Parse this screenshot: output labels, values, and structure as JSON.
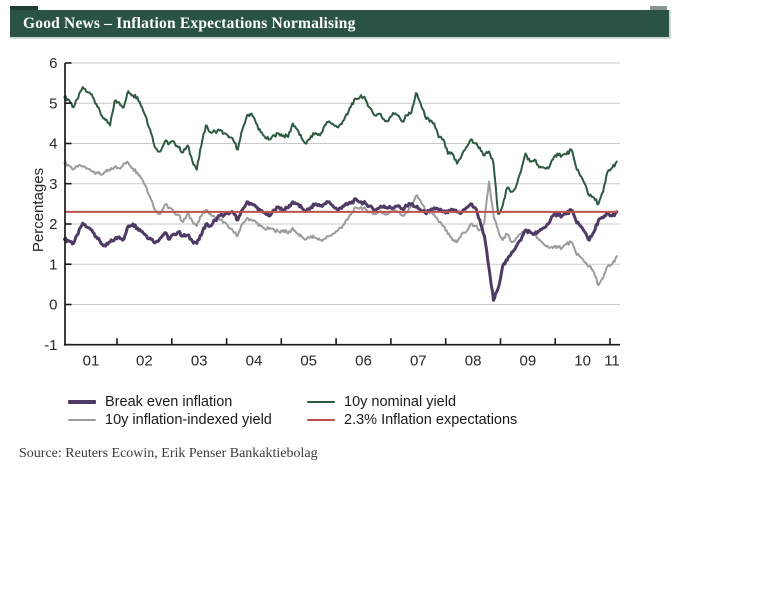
{
  "header": {
    "title": "Good News – Inflation Expectations Normalising",
    "bar_color": "#2a5343",
    "notch_left_color": "#1e3f33",
    "notch_right_color": "#8a968e"
  },
  "chart_data": {
    "type": "line",
    "title": "",
    "xlabel": "",
    "ylabel": "Percentages",
    "ylim": [
      -1,
      6
    ],
    "grid": "horizontal-on",
    "grid_color": "#c9c9c9",
    "axis_color": "#1a1a1a",
    "tick_label_color": "#26282e",
    "legend_position": "below",
    "y_ticks": [
      6,
      5,
      4,
      3,
      2,
      1,
      0,
      -1
    ],
    "x_tick_labels": [
      "01",
      "02",
      "03",
      "04",
      "05",
      "06",
      "07",
      "08",
      "09",
      "10",
      "11"
    ],
    "x_years_range": [
      2001.0,
      2011.2
    ],
    "reference_line": {
      "label": "2.3% Inflation expectations",
      "value": 2.3,
      "color": "#c0504d",
      "width": 2
    },
    "series": [
      {
        "name": "10y inflation-indexed yield",
        "color": "#9c9c9c",
        "width": 2,
        "noise": 0.045,
        "x_start": 2001.04,
        "x_step": 0.083333,
        "values": [
          3.52,
          3.45,
          3.36,
          3.42,
          3.44,
          3.38,
          3.32,
          3.28,
          3.22,
          3.3,
          3.33,
          3.42,
          3.38,
          3.5,
          3.52,
          3.38,
          3.28,
          3.12,
          2.9,
          2.6,
          2.33,
          2.25,
          2.48,
          2.4,
          2.3,
          2.22,
          2.05,
          2.25,
          2.08,
          1.95,
          2.2,
          2.35,
          2.25,
          2.15,
          2.1,
          2.05,
          1.9,
          1.8,
          1.72,
          2.0,
          2.15,
          2.1,
          2.04,
          1.95,
          1.86,
          1.9,
          1.84,
          1.8,
          1.85,
          1.76,
          1.9,
          1.76,
          1.68,
          1.62,
          1.7,
          1.66,
          1.6,
          1.63,
          1.7,
          1.76,
          1.86,
          1.96,
          2.1,
          2.3,
          2.4,
          2.42,
          2.36,
          2.3,
          2.25,
          2.3,
          2.27,
          2.25,
          2.35,
          2.3,
          2.22,
          2.28,
          2.45,
          2.7,
          2.58,
          2.35,
          2.28,
          2.24,
          2.05,
          1.95,
          1.75,
          1.6,
          1.55,
          1.75,
          1.8,
          2.0,
          1.95,
          1.85,
          2.05,
          3.05,
          2.2,
          1.85,
          1.6,
          1.75,
          1.55,
          1.65,
          1.75,
          1.85,
          1.8,
          1.74,
          1.6,
          1.5,
          1.42,
          1.4,
          1.45,
          1.4,
          1.5,
          1.55,
          1.3,
          1.18,
          1.05,
          0.95,
          0.8,
          0.48,
          0.65,
          0.95,
          1.0,
          1.2
        ]
      },
      {
        "name": "10y nominal yield",
        "color": "#2e5a41",
        "width": 2,
        "noise": 0.05,
        "x_start": 2001.04,
        "x_step": 0.083333,
        "values": [
          5.15,
          5.08,
          4.9,
          5.12,
          5.4,
          5.28,
          5.22,
          4.98,
          4.72,
          4.58,
          4.45,
          5.05,
          5.02,
          4.9,
          5.3,
          5.2,
          5.15,
          4.9,
          4.62,
          4.25,
          3.88,
          3.8,
          4.05,
          4.0,
          4.05,
          3.9,
          3.78,
          3.95,
          3.58,
          3.35,
          3.95,
          4.45,
          4.28,
          4.3,
          4.32,
          4.25,
          4.15,
          4.08,
          3.85,
          4.35,
          4.7,
          4.74,
          4.5,
          4.28,
          4.14,
          4.1,
          4.2,
          4.24,
          4.2,
          4.16,
          4.5,
          4.35,
          4.12,
          4.0,
          4.18,
          4.26,
          4.2,
          4.45,
          4.55,
          4.46,
          4.4,
          4.56,
          4.72,
          5.0,
          5.1,
          5.2,
          5.08,
          4.88,
          4.7,
          4.74,
          4.6,
          4.56,
          4.76,
          4.7,
          4.55,
          4.7,
          4.76,
          5.25,
          5.0,
          4.68,
          4.54,
          4.5,
          4.15,
          4.1,
          3.74,
          3.74,
          3.5,
          3.7,
          3.9,
          4.1,
          4.0,
          3.9,
          3.7,
          3.8,
          3.5,
          2.25,
          2.45,
          2.9,
          2.8,
          2.95,
          3.3,
          3.75,
          3.55,
          3.6,
          3.4,
          3.4,
          3.38,
          3.6,
          3.75,
          3.7,
          3.73,
          3.85,
          3.45,
          3.2,
          3.0,
          2.7,
          2.65,
          2.5,
          2.8,
          3.3,
          3.4,
          3.55
        ]
      },
      {
        "name": "Break even inflation",
        "color": "#4e3a64",
        "width": 3,
        "noise": 0.045,
        "x_start": 2001.04,
        "x_step": 0.083333,
        "values": [
          1.62,
          1.58,
          1.52,
          1.75,
          2.02,
          1.92,
          1.85,
          1.68,
          1.52,
          1.45,
          1.55,
          1.62,
          1.68,
          1.62,
          1.95,
          2.0,
          1.9,
          1.82,
          1.7,
          1.62,
          1.55,
          1.65,
          1.78,
          1.62,
          1.75,
          1.8,
          1.7,
          1.72,
          1.58,
          1.52,
          1.72,
          2.0,
          1.95,
          2.1,
          2.2,
          2.22,
          2.25,
          2.28,
          2.1,
          2.35,
          2.55,
          2.5,
          2.42,
          2.32,
          2.26,
          2.2,
          2.35,
          2.42,
          2.35,
          2.4,
          2.55,
          2.5,
          2.4,
          2.32,
          2.42,
          2.5,
          2.45,
          2.5,
          2.55,
          2.42,
          2.35,
          2.45,
          2.48,
          2.55,
          2.6,
          2.55,
          2.5,
          2.45,
          2.35,
          2.4,
          2.45,
          2.4,
          2.4,
          2.45,
          2.38,
          2.45,
          2.5,
          2.42,
          2.35,
          2.28,
          2.3,
          2.4,
          2.35,
          2.3,
          2.28,
          2.35,
          2.3,
          2.28,
          2.4,
          2.5,
          2.4,
          2.1,
          1.7,
          0.9,
          0.1,
          0.4,
          0.95,
          1.1,
          1.3,
          1.45,
          1.6,
          1.85,
          1.8,
          1.75,
          1.82,
          1.9,
          2.0,
          2.2,
          2.25,
          2.2,
          2.25,
          2.35,
          2.1,
          1.95,
          1.8,
          1.6,
          1.8,
          2.1,
          2.15,
          2.25,
          2.2,
          2.3
        ]
      }
    ]
  },
  "legend": {
    "items": [
      {
        "label": "Break even inflation",
        "color": "#4e3a64"
      },
      {
        "label": "10y nominal yield",
        "color": "#2e5a41"
      },
      {
        "label": "10y inflation-indexed yield",
        "color": "#9c9c9c"
      },
      {
        "label": "2.3% Inflation expectations",
        "color": "#c0504d"
      }
    ]
  },
  "source": {
    "text": "Source: Reuters Ecowin, Erik Penser Bankaktiebolag"
  }
}
